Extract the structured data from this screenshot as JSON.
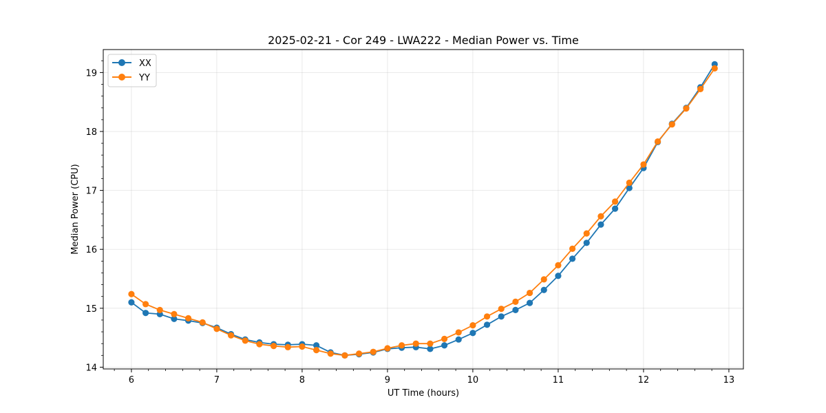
{
  "chart_data": {
    "type": "line",
    "title": "2025-02-21 - Cor 249 - LWA222 - Median Power vs. Time",
    "xlabel": "UT Time (hours)",
    "ylabel": "Median Power (CPU)",
    "xlim": [
      5.67,
      13.17
    ],
    "ylim": [
      13.97,
      19.39
    ],
    "xticks": [
      6,
      7,
      8,
      9,
      10,
      11,
      12,
      13
    ],
    "yticks": [
      14,
      15,
      16,
      17,
      18,
      19
    ],
    "grid": true,
    "legend_position": "top-left",
    "x": [
      6.0,
      6.1667,
      6.3333,
      6.5,
      6.6667,
      6.8333,
      7.0,
      7.1667,
      7.3333,
      7.5,
      7.6667,
      7.8333,
      8.0,
      8.1667,
      8.3333,
      8.5,
      8.6667,
      8.8333,
      9.0,
      9.1667,
      9.3333,
      9.5,
      9.6667,
      9.8333,
      10.0,
      10.1667,
      10.3333,
      10.5,
      10.6667,
      10.8333,
      11.0,
      11.1667,
      11.3333,
      11.5,
      11.6667,
      11.8333,
      12.0,
      12.1667,
      12.3333,
      12.5,
      12.6667,
      12.8333
    ],
    "series": [
      {
        "name": "XX",
        "color": "#1f77b4",
        "values": [
          15.1,
          14.92,
          14.9,
          14.82,
          14.79,
          14.75,
          14.67,
          14.56,
          14.47,
          14.42,
          14.39,
          14.38,
          14.39,
          14.37,
          14.25,
          14.2,
          14.22,
          14.25,
          14.31,
          14.33,
          14.34,
          14.31,
          14.37,
          14.47,
          14.58,
          14.72,
          14.86,
          14.97,
          15.09,
          15.31,
          15.55,
          15.84,
          16.11,
          16.42,
          16.69,
          17.04,
          17.38,
          17.82,
          18.13,
          18.4,
          18.75,
          19.14
        ]
      },
      {
        "name": "YY",
        "color": "#ff7f0e",
        "values": [
          15.24,
          15.07,
          14.97,
          14.9,
          14.83,
          14.76,
          14.65,
          14.54,
          14.45,
          14.39,
          14.36,
          14.34,
          14.35,
          14.29,
          14.23,
          14.2,
          14.23,
          14.26,
          14.32,
          14.37,
          14.4,
          14.4,
          14.48,
          14.59,
          14.71,
          14.86,
          14.99,
          15.11,
          15.26,
          15.49,
          15.73,
          16.01,
          16.27,
          16.56,
          16.81,
          17.13,
          17.44,
          17.83,
          18.12,
          18.39,
          18.72,
          19.07
        ]
      }
    ]
  }
}
